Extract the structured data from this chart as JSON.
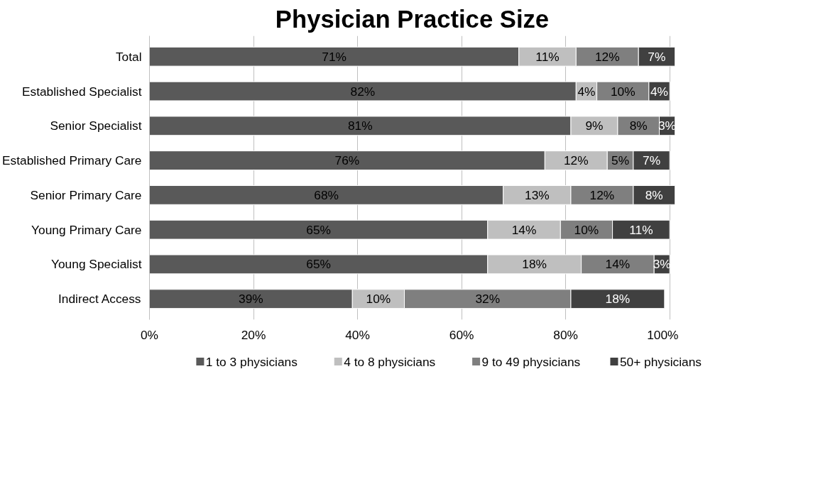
{
  "chart_data": {
    "type": "bar",
    "title": "Physician Practice Size",
    "orientation": "horizontal",
    "stacked": true,
    "categories": [
      "Total",
      "Established Specialist",
      "Senior Specialist",
      "Established Primary Care",
      "Senior Primary Care",
      "Young Primary Care",
      "Young Specialist",
      "Indirect Access"
    ],
    "series": [
      {
        "name": "1 to 3 physicians",
        "color": "#595959",
        "values": [
          71,
          82,
          81,
          76,
          68,
          65,
          65,
          39
        ],
        "value_labels": [
          "71%",
          "82%",
          "81%",
          "76%",
          "68%",
          "65%",
          "65%",
          "39%"
        ]
      },
      {
        "name": "4 to 8 physicians",
        "color": "#bfbfbf",
        "values": [
          11,
          4,
          9,
          12,
          13,
          14,
          18,
          10
        ],
        "value_labels": [
          "11%",
          "4%",
          "9%",
          "12%",
          "13%",
          "14%",
          "18%",
          "10%"
        ]
      },
      {
        "name": "9 to 49 physicians",
        "color": "#7f7f7f",
        "values": [
          12,
          10,
          8,
          5,
          12,
          10,
          14,
          32
        ],
        "value_labels": [
          "12%",
          "10%",
          "8%",
          "5%",
          "12%",
          "10%",
          "14%",
          "32%"
        ]
      },
      {
        "name": "50+ physicians",
        "color": "#404040",
        "values": [
          7,
          4,
          3,
          7,
          8,
          11,
          3,
          18
        ],
        "value_labels": [
          "7%",
          "4%",
          "3%",
          "7%",
          "8%",
          "11%",
          "3%",
          "18%"
        ]
      }
    ],
    "xlim": [
      0,
      101
    ],
    "xticks": [
      {
        "value": 0,
        "label": "0%"
      },
      {
        "value": 20,
        "label": "20%"
      },
      {
        "value": 40,
        "label": "40%"
      },
      {
        "value": 60,
        "label": "60%"
      },
      {
        "value": 80,
        "label": "80%"
      },
      {
        "value": 100,
        "label": "100%"
      }
    ],
    "grid": "x",
    "legend": "bottom"
  }
}
